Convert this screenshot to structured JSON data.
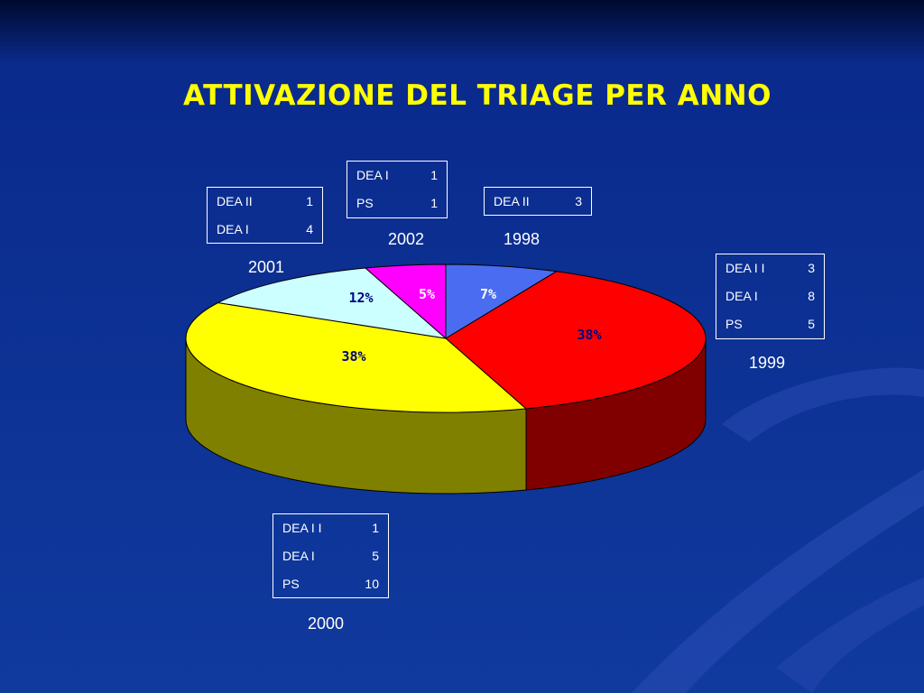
{
  "title": "ATTIVAZIONE DEL TRIAGE PER ANNO",
  "chart_data": {
    "type": "pie",
    "title": "ATTIVAZIONE DEL TRIAGE PER ANNO",
    "categories": [
      "1998",
      "1999",
      "2000",
      "2001",
      "2002"
    ],
    "values": [
      7,
      38,
      38,
      12,
      5
    ],
    "labels": [
      "7%",
      "38%",
      "38%",
      "12%",
      "5%"
    ],
    "colors": [
      "#4a6cf0",
      "#ff0000",
      "#ffff00",
      "#ccffff",
      "#ff00ff"
    ],
    "side_colors": [
      "#2a3ea0",
      "#800000",
      "#808000",
      "#80a0a0",
      "#a000a0"
    ],
    "label_colors": [
      "#ffffff",
      "#000080",
      "#000080",
      "#000080",
      "#ffffff"
    ],
    "three_d": true,
    "legend": "none"
  },
  "boxes": {
    "y1998": {
      "year": "1998",
      "rows": [
        {
          "label": "DEA II",
          "value": "3"
        }
      ]
    },
    "y1999": {
      "year": "1999",
      "rows": [
        {
          "label": "DEA I I",
          "value": "3"
        },
        {
          "label": "DEA I",
          "value": "8"
        },
        {
          "label": "PS",
          "value": "5"
        }
      ]
    },
    "y2000": {
      "year": "2000",
      "rows": [
        {
          "label": "DEA I I",
          "value": "1"
        },
        {
          "label": "DEA I",
          "value": "5"
        },
        {
          "label": "PS",
          "value": "10"
        }
      ]
    },
    "y2001": {
      "year": "2001",
      "rows": [
        {
          "label": "DEA II",
          "value": "1"
        },
        {
          "label": "DEA I",
          "value": "4"
        }
      ]
    },
    "y2002": {
      "year": "2002",
      "rows": [
        {
          "label": "DEA I",
          "value": "1"
        },
        {
          "label": "PS",
          "value": "1"
        }
      ]
    }
  }
}
